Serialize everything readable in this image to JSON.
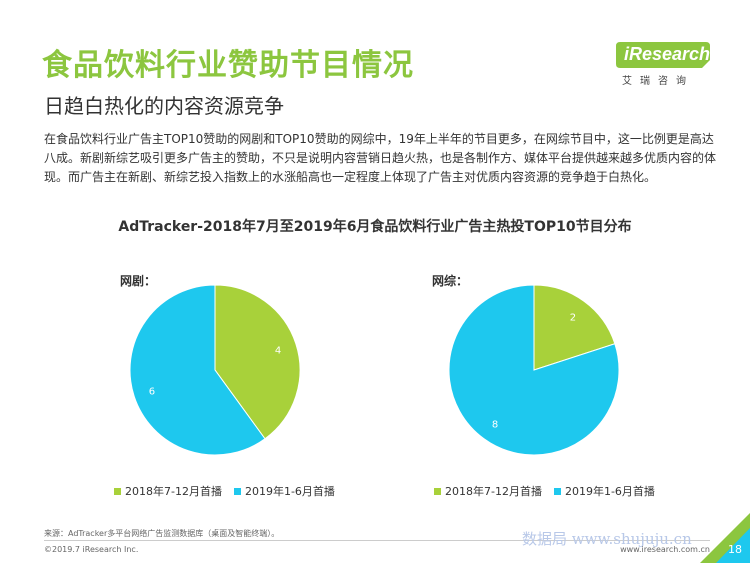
{
  "header": {
    "title": "食品饮料行业赞助节目情况",
    "subtitle": "日趋白热化的内容资源竞争",
    "logo_text": "iResearch",
    "logo_sub": "艾瑞咨询"
  },
  "body_text": "在食品饮料行业广告主TOP10赞助的网剧和TOP10赞助的网综中，19年上半年的节目更多，在网综节目中，这一比例更是高达八成。新剧新综艺吸引更多广告主的赞助，不只是说明内容营销日趋火热，也是各制作方、媒体平台提供越来越多优质内容的体现。而广告主在新剧、新综艺投入指数上的水涨船高也一定程度上体现了广告主对优质内容资源的竞争趋于白热化。",
  "chart_data": [
    {
      "type": "pie",
      "title": "AdTracker-2018年7月至2019年6月食品饮料行业广告主热投TOP10节目分布",
      "label": "网剧：",
      "categories": [
        "2018年7-12月首播",
        "2019年1-6月首播"
      ],
      "values": [
        4,
        6
      ],
      "colors": [
        "#a8d13a",
        "#1ec8ee"
      ],
      "legend": "bottom"
    },
    {
      "type": "pie",
      "label": "网综：",
      "categories": [
        "2018年7-12月首播",
        "2019年1-6月首播"
      ],
      "values": [
        2,
        8
      ],
      "colors": [
        "#a8d13a",
        "#1ec8ee"
      ],
      "legend": "bottom"
    }
  ],
  "footer": {
    "source": "来源：AdTracker多平台网络广告监测数据库（桌面及智能终端）。",
    "copyright": "©2019.7 iResearch Inc.",
    "site": "www.iresearch.com.cn",
    "page": "18",
    "watermark": "数据局 www.shujuju.cn"
  },
  "colors": {
    "accent_green": "#8cc63f",
    "accent_blue": "#1ec8ee"
  }
}
